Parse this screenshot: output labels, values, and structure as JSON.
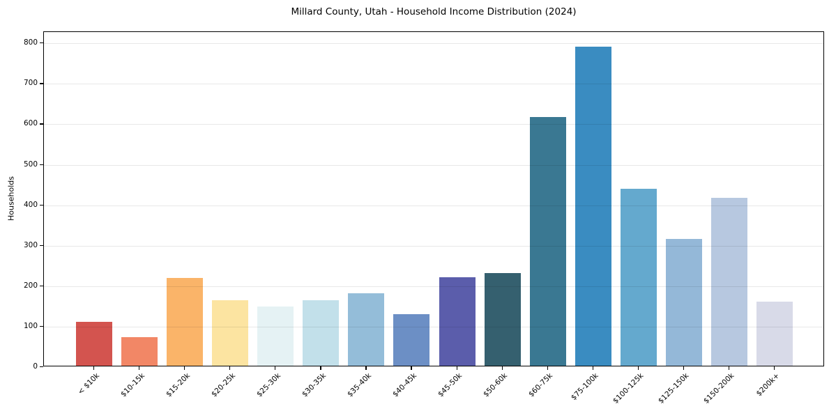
{
  "chart_data": {
    "type": "bar",
    "title": "Millard County, Utah - Household Income Distribution (2024)",
    "ylabel": "Households",
    "xlabel": "",
    "categories": [
      "< $10k",
      "$10-15k",
      "$15-20k",
      "$20-25k",
      "$25-30k",
      "$30-35k",
      "$35-40k",
      "$40-45k",
      "$45-50k",
      "$50-60k",
      "$60-75k",
      "$75-100k",
      "$100-125k",
      "$125-150k",
      "$150-200k",
      "$200k+"
    ],
    "values": [
      108,
      70,
      217,
      161,
      146,
      162,
      179,
      128,
      218,
      229,
      615,
      789,
      438,
      313,
      415,
      159
    ],
    "bar_colors": [
      "#d3544f",
      "#f28766",
      "#fab469",
      "#fce4a1",
      "#e5f2f4",
      "#c2e0ea",
      "#94bdd9",
      "#6c8fc5",
      "#5b5dab",
      "#35606f",
      "#3a7892",
      "#3a8cc1",
      "#64a9ce",
      "#94b8d8",
      "#b7c8e0",
      "#d8dae8"
    ],
    "ylim": [
      0,
      828
    ],
    "yticks": [
      0,
      100,
      200,
      300,
      400,
      500,
      600,
      700,
      800
    ],
    "x_tick_rotation": 45,
    "legend": "none",
    "grid": "horizontal",
    "grid_color": "rgba(0,0,0,0.09)",
    "spine_color": "#000000",
    "background": "#ffffff"
  }
}
